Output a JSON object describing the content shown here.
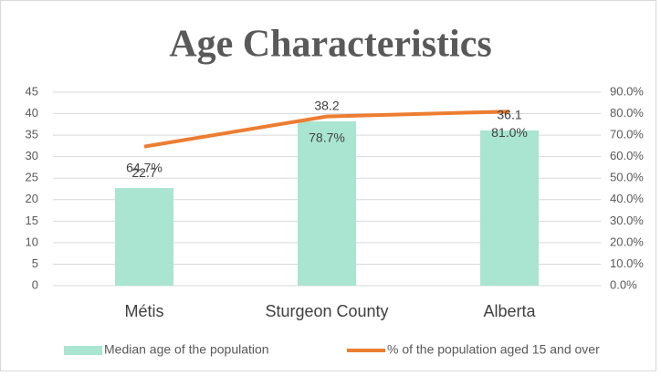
{
  "chart_data": {
    "type": "combo",
    "title": "Age Characteristics",
    "categories": [
      "Métis",
      "Sturgeon County",
      "Alberta"
    ],
    "series": [
      {
        "name": "Median age of the population",
        "type": "bar",
        "color": "#a9e5d0",
        "values": [
          22.7,
          38.2,
          36.1
        ]
      },
      {
        "name": "% of the population aged 15 and over",
        "type": "line",
        "axis": "y2",
        "color": "#ed7d31",
        "values": [
          64.7,
          78.7,
          81.0
        ],
        "value_labels": [
          "64.7%",
          "78.7%",
          "81.0%"
        ]
      }
    ],
    "ylim": [
      0,
      45
    ],
    "yticks": [
      0,
      5,
      10,
      15,
      20,
      25,
      30,
      35,
      40,
      45
    ],
    "y2lim": [
      0,
      90
    ],
    "y2ticks": [
      {
        "value": 0,
        "label": "0.0%"
      },
      {
        "value": 10,
        "label": "10.0%"
      },
      {
        "value": 20,
        "label": "20.0%"
      },
      {
        "value": 30,
        "label": "30.0%"
      },
      {
        "value": 40,
        "label": "40.0%"
      },
      {
        "value": 50,
        "label": "50.0%"
      },
      {
        "value": 60,
        "label": "60.0%"
      },
      {
        "value": 70,
        "label": "70.0%"
      },
      {
        "value": 80,
        "label": "80.0%"
      },
      {
        "value": 90,
        "label": "90.0%"
      }
    ],
    "grid": true,
    "legend": "bottom"
  }
}
